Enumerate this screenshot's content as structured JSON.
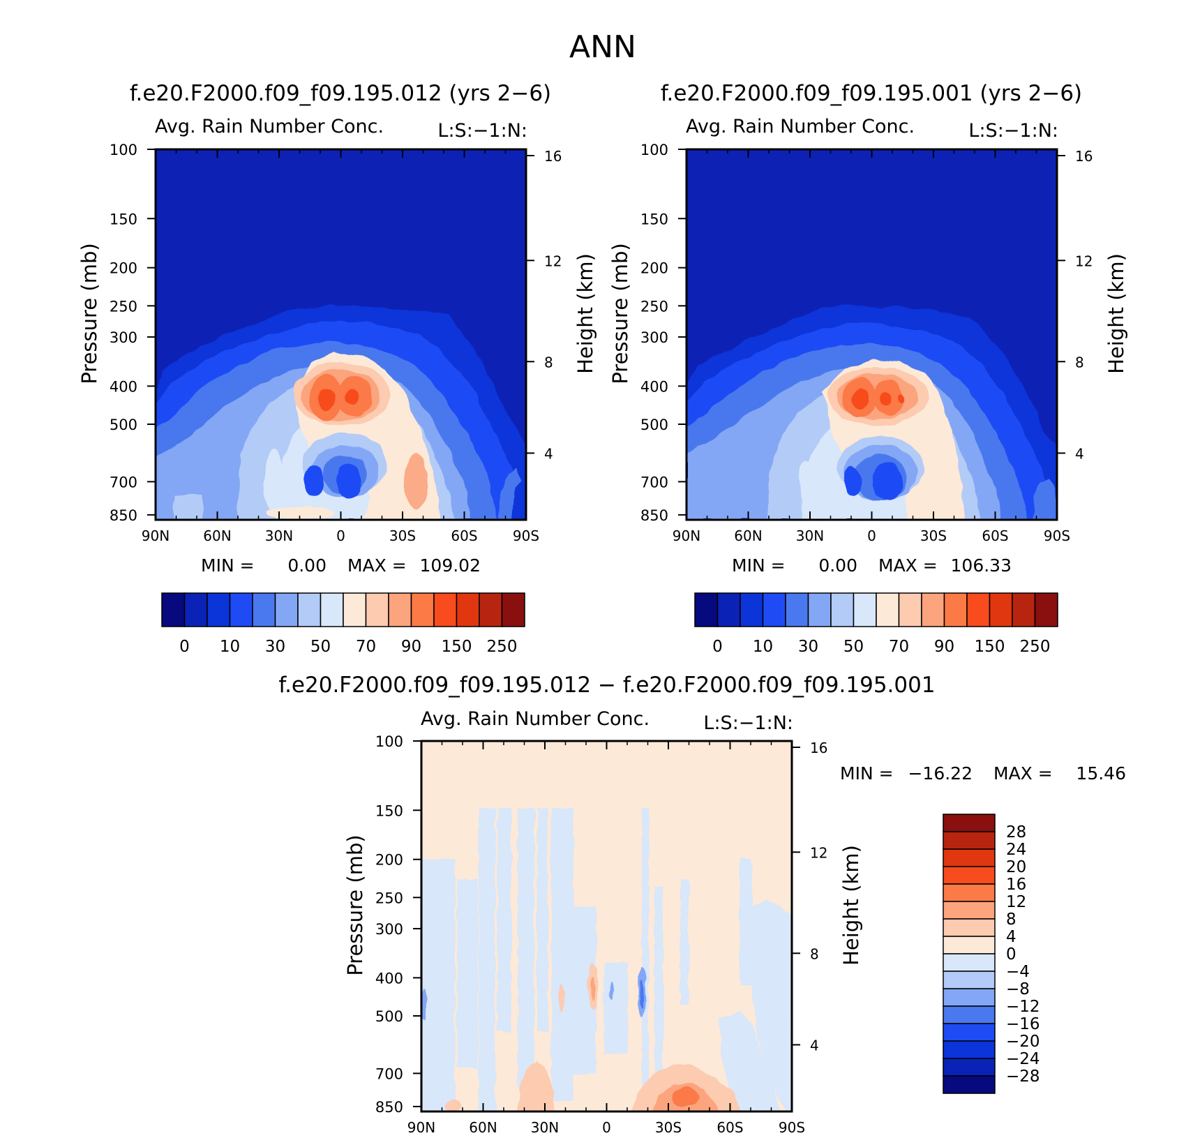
{
  "figure": {
    "title": "ANN"
  },
  "chart_data": [
    {
      "id": "panel1",
      "type": "heatmap",
      "title": "f.e20.F2000.f09_f09.195.012 (yrs 2−6)",
      "variable": "Avg. Rain Number Conc.",
      "tag": "L:S:−1:N:",
      "xlabel": "",
      "ylabel": "Pressure (mb)",
      "y2label": "Height (km)",
      "xticks": [
        "90N",
        "60N",
        "30N",
        "0",
        "30S",
        "60S",
        "90S"
      ],
      "yticks": [
        "100",
        "150",
        "200",
        "250",
        "300",
        "400",
        "500",
        "700",
        "850"
      ],
      "y2ticks": [
        "16",
        "12",
        "8",
        "4"
      ],
      "min_label": "MIN =",
      "min_value": "0.00",
      "max_label": "MAX =",
      "max_value": "109.02",
      "colorbar_labels": [
        "0",
        "10",
        "30",
        "50",
        "70",
        "90",
        "150",
        "250"
      ],
      "y_log_scale": true,
      "colormap": [
        "#07097e",
        "#0a22b5",
        "#0b34d9",
        "#1f4bf5",
        "#4a78ee",
        "#83a7f5",
        "#b3cbf7",
        "#d8e7fa",
        "#fde9d8",
        "#fccbb0",
        "#fba47e",
        "#fb7a46",
        "#f84b1e",
        "#e13710",
        "#b72510",
        "#8a0f0f"
      ]
    },
    {
      "id": "panel2",
      "type": "heatmap",
      "title": "f.e20.F2000.f09_f09.195.001 (yrs 2−6)",
      "variable": "Avg. Rain Number Conc.",
      "tag": "L:S:−1:N:",
      "xlabel": "",
      "ylabel": "Pressure (mb)",
      "y2label": "Height (km)",
      "xticks": [
        "90N",
        "60N",
        "30N",
        "0",
        "30S",
        "60S",
        "90S"
      ],
      "yticks": [
        "100",
        "150",
        "200",
        "250",
        "300",
        "400",
        "500",
        "700",
        "850"
      ],
      "y2ticks": [
        "16",
        "12",
        "8",
        "4"
      ],
      "min_label": "MIN =",
      "min_value": "0.00",
      "max_label": "MAX =",
      "max_value": "106.33",
      "colorbar_labels": [
        "0",
        "10",
        "30",
        "50",
        "70",
        "90",
        "150",
        "250"
      ],
      "y_log_scale": true
    },
    {
      "id": "panel3",
      "type": "heatmap",
      "title": "f.e20.F2000.f09_f09.195.012 − f.e20.F2000.f09_f09.195.001",
      "variable": "Avg. Rain Number Conc.",
      "tag": "L:S:−1:N:",
      "xlabel": "",
      "ylabel": "Pressure (mb)",
      "y2label": "Height (km)",
      "xticks": [
        "90N",
        "60N",
        "30N",
        "0",
        "30S",
        "60S",
        "90S"
      ],
      "yticks": [
        "100",
        "150",
        "200",
        "250",
        "300",
        "400",
        "500",
        "700",
        "850"
      ],
      "y2ticks": [
        "16",
        "12",
        "8",
        "4"
      ],
      "min_label": "MIN =",
      "min_value": "−16.22",
      "max_label": "MAX =",
      "max_value": "15.46",
      "colorbar_labels": [
        "28",
        "24",
        "20",
        "16",
        "12",
        "8",
        "4",
        "0",
        "−4",
        "−8",
        "−12",
        "−16",
        "−20",
        "−24",
        "−28"
      ],
      "y_log_scale": true,
      "colormap": [
        "#8a0f0f",
        "#b72510",
        "#e13710",
        "#f84b1e",
        "#fb7a46",
        "#fba47e",
        "#fccbb0",
        "#fde9d8",
        "#d8e7fa",
        "#b3cbf7",
        "#83a7f5",
        "#4a78ee",
        "#1f4bf5",
        "#0b34d9",
        "#0a22b5",
        "#07097e"
      ]
    }
  ]
}
